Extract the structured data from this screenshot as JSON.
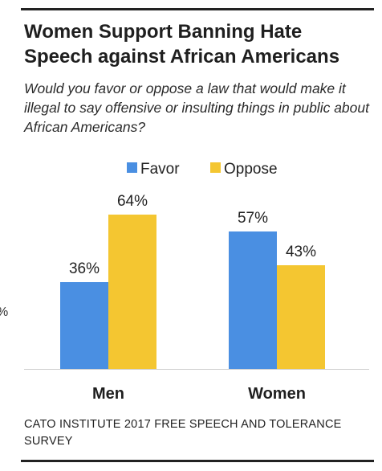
{
  "chart_data": {
    "type": "bar",
    "title": "Women Support Banning Hate Speech against African Americans",
    "subtitle": "Would you favor or oppose a law that would make it illegal to say offensive or insulting things in public about African Americans?",
    "categories": [
      "Men",
      "Women"
    ],
    "series": [
      {
        "name": "Favor",
        "values": [
          36,
          57
        ],
        "labels": [
          "36%",
          "57%"
        ],
        "color": "#4a8fe2"
      },
      {
        "name": "Oppose",
        "values": [
          64,
          43
        ],
        "labels": [
          "64%",
          "43%"
        ],
        "color": "#f4c631"
      }
    ],
    "ylim": [
      0,
      100
    ],
    "unit": "%",
    "legend": "top-center",
    "grid": false,
    "source": "CATO INSTITUTE 2017 FREE SPEECH AND TOLERANCE SURVEY",
    "edge_mark": "%"
  }
}
